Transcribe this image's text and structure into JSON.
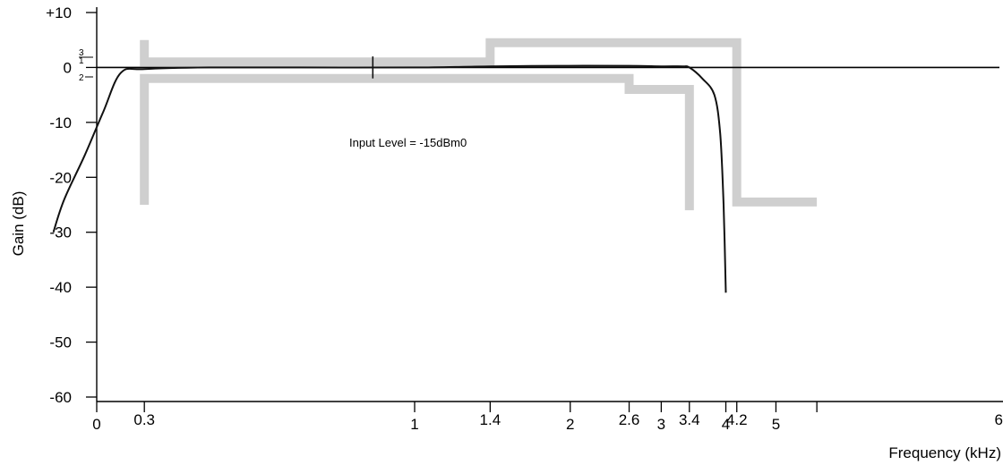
{
  "chart_data": {
    "type": "line",
    "title": "",
    "xlabel": "Frequency (kHz)",
    "ylabel": "Gain (dB)",
    "ylim": [
      -60,
      10
    ],
    "y_ticks": [
      10,
      0,
      -10,
      -20,
      -30,
      -40,
      -50,
      -60
    ],
    "y_tick_labels": [
      "+10",
      "0",
      "-10",
      "-20",
      "-30",
      "-40",
      "-50",
      "-60"
    ],
    "x_scale": "log",
    "x_ticks": [
      0,
      0.3,
      1,
      1.4,
      2,
      2.6,
      3,
      3.4,
      4,
      4.2,
      5,
      6
    ],
    "x_tick_labels": [
      "0",
      "0.3",
      "1",
      "1.4",
      "2",
      "2.6",
      "3",
      "3.4",
      "4",
      "4.2",
      "5",
      "6"
    ],
    "annotation": "Input Level = -15dBm0",
    "mask_markers": [
      "3",
      "1",
      "2"
    ],
    "grid": false,
    "series": [
      {
        "x": [
          0.2,
          0.21,
          0.23,
          0.25,
          0.27,
          0.3,
          0.4,
          0.6,
          1.0,
          1.4,
          1.9,
          2.6,
          3.0,
          3.3,
          3.4,
          3.6,
          3.8,
          3.9,
          3.96,
          4.0
        ],
        "y": [
          -30,
          -24,
          -16,
          -8,
          -1,
          -0.3,
          0,
          0,
          0,
          0.2,
          0.3,
          0.3,
          0.2,
          0.2,
          0,
          -2,
          -5,
          -12,
          -25,
          -41
        ]
      },
      {
        "x": [
          0.3,
          0.3,
          1.4,
          1.4,
          4.2,
          4.2,
          6.0
        ],
        "y": [
          5,
          1,
          1,
          4.5,
          4.5,
          -24.5,
          -24.5
        ]
      },
      {
        "x": [
          0.3,
          0.3,
          2.6,
          2.6,
          3.4,
          3.4
        ],
        "y": [
          -25,
          -2,
          -2,
          -4,
          -4,
          -26
        ]
      },
      {
        "x": [
          0.83,
          0.83
        ],
        "y": [
          2,
          -2
        ]
      }
    ]
  }
}
